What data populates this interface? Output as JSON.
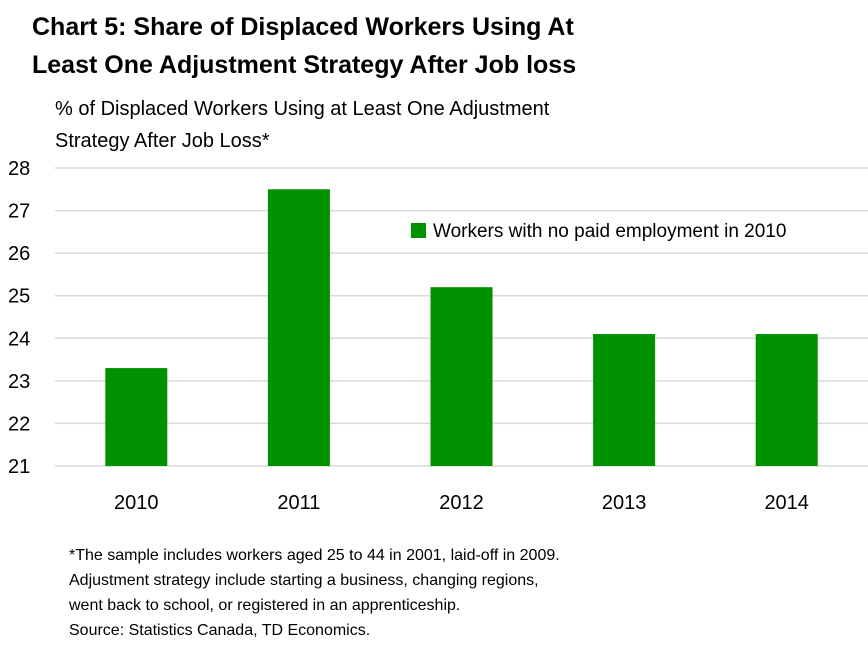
{
  "title_lines": [
    "Chart 5: Share of Displaced Workers Using At",
    "Least One Adjustment Strategy After Job loss"
  ],
  "footnote_lines": [
    "*The sample includes workers aged 25 to 44 in 2001, laid-off in 2009.",
    "Adjustment strategy include starting a business, changing regions,",
    "went back to school, or registered in an apprenticeship.",
    "Source: Statistics Canada, TD Economics."
  ],
  "chart_data": {
    "type": "bar",
    "title": "Chart 5: Share of Displaced Workers Using At Least One Adjustment Strategy After Job loss",
    "ylabel_lines": [
      "% of Displaced Workers Using at Least One Adjustment",
      "Strategy After Job Loss*"
    ],
    "xlabel": "",
    "categories": [
      "2010",
      "2011",
      "2012",
      "2013",
      "2014"
    ],
    "series": [
      {
        "name": "Workers with no paid employment in 2010",
        "values": [
          23.3,
          27.5,
          25.2,
          24.1,
          24.1
        ]
      }
    ],
    "ylim": [
      21,
      28
    ],
    "yticks": [
      21,
      22,
      23,
      24,
      25,
      26,
      27,
      28
    ],
    "grid": true,
    "legend_position": "top-right",
    "bar_color": "#009100",
    "grid_color": "#d9d9d9"
  }
}
